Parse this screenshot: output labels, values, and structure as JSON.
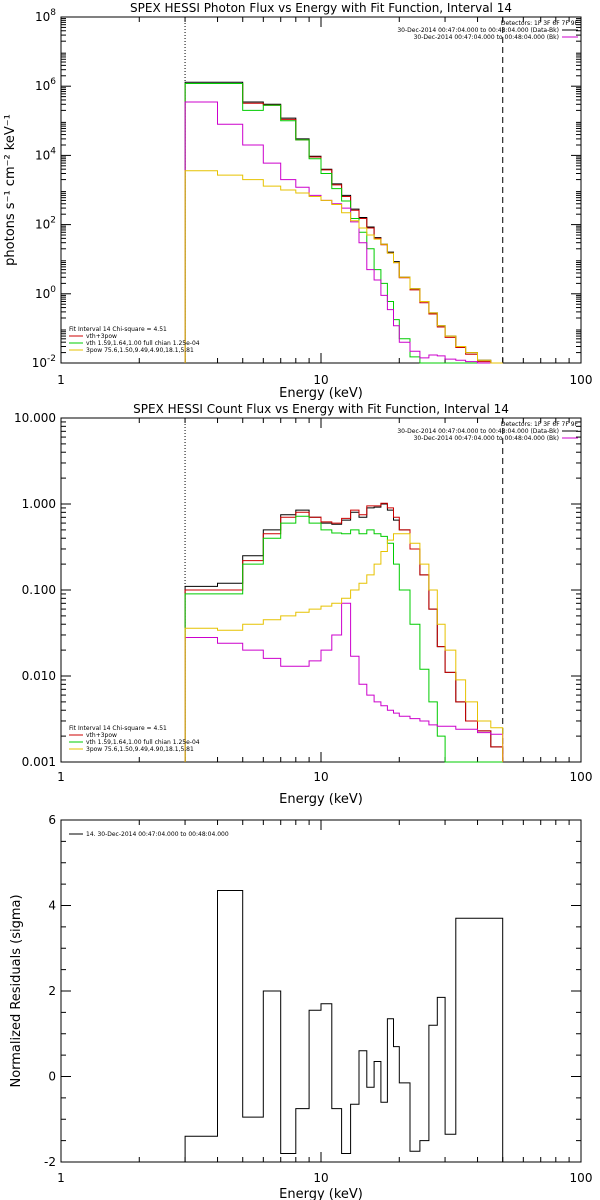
{
  "chart_data": [
    {
      "type": "line",
      "title": "SPEX HESSI Photon Flux vs Energy with Fit Function, Interval 14",
      "xlabel": "Energy (keV)",
      "ylabel": "photons s⁻¹ cm⁻² keV⁻¹",
      "xscale": "log",
      "yscale": "log",
      "xlim": [
        1,
        100
      ],
      "ylim": [
        0.01,
        100000000
      ],
      "x_ticks": [
        {
          "v": 1,
          "label": "1"
        },
        {
          "v": 10,
          "label": "10"
        },
        {
          "v": 100,
          "label": "100"
        }
      ],
      "y_ticks": [
        {
          "v": 0.01,
          "base": "10",
          "exp": "-2"
        },
        {
          "v": 1,
          "base": "10",
          "exp": "0"
        },
        {
          "v": 100,
          "base": "10",
          "exp": "2"
        },
        {
          "v": 10000,
          "base": "10",
          "exp": "4"
        },
        {
          "v": 1000000,
          "base": "10",
          "exp": "6"
        },
        {
          "v": 100000000,
          "base": "10",
          "exp": "8"
        }
      ],
      "vlines": [
        {
          "x": 3.0,
          "style": "dotted",
          "color": "#000000"
        },
        {
          "x": 50.0,
          "style": "dashed",
          "color": "#000000"
        }
      ],
      "legend_right": {
        "detectors": "Detectors: 1F 3F 6F 7F 9F",
        "lines": [
          {
            "text": "30-Dec-2014 00:47:04.000 to 00:48:04.000 (Data-Bk)",
            "color": "#000000"
          },
          {
            "text": "30-Dec-2014 00:47:04.000 to 00:48:04.000 (Bk)",
            "color": "#cc00cc"
          }
        ]
      },
      "legend_left": {
        "header": "Fit Interval 14    Chi-square = 4.51",
        "lines": [
          {
            "text": "vth+3pow",
            "color": "#cc0000"
          },
          {
            "text": "vth 1.59,1.64,1.00  full chian 1.25e-04",
            "color": "#00cc00"
          },
          {
            "text": "3pow 75.6,1.50,9.49,4.90,18.1,5.81",
            "color": "#e6c200"
          }
        ]
      },
      "series": [
        {
          "color": "#000000",
          "edges": [
            3,
            4,
            5,
            6,
            7,
            8,
            9,
            10,
            11,
            12,
            13,
            14,
            15,
            16,
            17,
            18,
            19,
            20,
            22,
            24,
            26,
            28,
            30,
            33,
            36,
            40,
            45,
            50
          ],
          "values": [
            1300000,
            1300000,
            350000,
            300000,
            120000,
            30000,
            9500,
            4000,
            1500,
            700,
            280,
            160,
            85,
            42,
            27,
            16,
            8.5,
            3,
            1.4,
            0.6,
            0.28,
            0.12,
            0.06,
            0.03,
            0.02,
            0.012,
            0.01
          ]
        },
        {
          "color": "#cc0000",
          "edges": [
            3,
            4,
            5,
            6,
            7,
            8,
            9,
            10,
            11,
            12,
            13,
            14,
            15,
            16,
            17,
            18,
            19,
            20,
            22,
            24,
            26,
            28,
            30,
            33,
            36,
            40,
            45,
            50
          ],
          "values": [
            1200000,
            1200000,
            320000,
            280000,
            110000,
            28000,
            9000,
            3800,
            1400,
            650,
            260,
            150,
            80,
            40,
            26,
            15,
            8,
            2.9,
            1.3,
            0.55,
            0.26,
            0.11,
            0.055,
            0.028,
            0.018,
            0.011,
            0.01
          ]
        },
        {
          "color": "#00cc00",
          "edges": [
            3,
            4,
            5,
            6,
            7,
            8,
            9,
            10,
            11,
            12,
            13,
            14,
            15,
            16,
            17,
            18,
            19,
            20,
            22,
            24,
            26,
            28,
            30,
            33,
            36,
            40,
            45,
            50
          ],
          "values": [
            1200000,
            1200000,
            200000,
            280000,
            100000,
            28000,
            8000,
            3000,
            1100,
            480,
            150,
            60,
            20,
            5,
            2,
            0.6,
            0.18,
            0.05,
            0.015,
            0.01,
            0.01,
            0.01,
            0.01,
            0.01,
            0.01,
            0.01,
            0.01
          ]
        },
        {
          "color": "#cc00cc",
          "edges": [
            3,
            4,
            5,
            6,
            7,
            8,
            9,
            10,
            11,
            12,
            13,
            14,
            15,
            16,
            17,
            18,
            19,
            20,
            22,
            24,
            26,
            28,
            30,
            33,
            36,
            40,
            45,
            50
          ],
          "values": [
            350000,
            80000,
            20000,
            6000,
            2000,
            1200,
            700,
            500,
            400,
            300,
            120,
            30,
            5,
            2.5,
            0.9,
            0.35,
            0.12,
            0.04,
            0.022,
            0.014,
            0.017,
            0.016,
            0.013,
            0.012,
            0.011,
            0.01,
            0.01
          ]
        },
        {
          "color": "#e6c200",
          "edges": [
            3,
            4,
            5,
            6,
            7,
            8,
            9,
            10,
            11,
            12,
            13,
            14,
            15,
            16,
            17,
            18,
            19,
            20,
            22,
            24,
            26,
            28,
            30,
            33,
            36,
            40,
            45,
            50
          ],
          "values": [
            3600,
            2700,
            2000,
            1300,
            1000,
            820,
            650,
            500,
            380,
            220,
            130,
            80,
            50,
            38,
            27,
            15,
            8,
            3,
            1.4,
            0.6,
            0.28,
            0.12,
            0.06,
            0.03,
            0.02,
            0.012,
            0.01
          ]
        }
      ]
    },
    {
      "type": "line",
      "title": "SPEX HESSI Count Flux vs Energy with Fit Function, Interval 14",
      "xlabel": "Energy (keV)",
      "ylabel": "",
      "xscale": "log",
      "yscale": "log",
      "xlim": [
        1,
        100
      ],
      "ylim": [
        0.001,
        10
      ],
      "x_ticks": [
        {
          "v": 1,
          "label": "1"
        },
        {
          "v": 10,
          "label": "10"
        },
        {
          "v": 100,
          "label": "100"
        }
      ],
      "y_ticks": [
        {
          "v": 0.001,
          "label": "0.001"
        },
        {
          "v": 0.01,
          "label": "0.010"
        },
        {
          "v": 0.1,
          "label": "0.100"
        },
        {
          "v": 1,
          "label": "1.000"
        },
        {
          "v": 10,
          "label": "10.000"
        }
      ],
      "vlines": [
        {
          "x": 3.0,
          "style": "dotted",
          "color": "#000000"
        },
        {
          "x": 50.0,
          "style": "dashed",
          "color": "#000000"
        }
      ],
      "legend_right": {
        "detectors": "Detectors: 1F 3F 6F 7F 9F",
        "lines": [
          {
            "text": "30-Dec-2014 00:47:04.000 to 00:48:04.000 (Data-Bk)",
            "color": "#000000"
          },
          {
            "text": "30-Dec-2014 00:47:04.000 to 00:48:04.000 (Bk)",
            "color": "#cc00cc"
          }
        ]
      },
      "legend_left": {
        "header": "Fit Interval 14    Chi-square = 4.51",
        "lines": [
          {
            "text": "vth+3pow",
            "color": "#cc0000"
          },
          {
            "text": "vth 1.59,1.64,1.00  full chian 1.25e-04",
            "color": "#00cc00"
          },
          {
            "text": "3pow 75.6,1.50,9.49,4.90,18.1,5.81",
            "color": "#e6c200"
          }
        ]
      },
      "series": [
        {
          "color": "#000000",
          "edges": [
            3,
            4,
            5,
            6,
            7,
            8,
            9,
            10,
            11,
            12,
            13,
            14,
            15,
            16,
            17,
            18,
            19,
            20,
            22,
            24,
            26,
            28,
            30,
            33,
            36,
            40,
            45,
            50
          ],
          "values": [
            0.11,
            0.12,
            0.25,
            0.5,
            0.75,
            0.85,
            0.7,
            0.6,
            0.58,
            0.65,
            0.8,
            0.7,
            0.9,
            0.92,
            1.0,
            0.85,
            0.65,
            0.5,
            0.3,
            0.15,
            0.06,
            0.022,
            0.011,
            0.005,
            0.003,
            0.0023,
            0.0015
          ]
        },
        {
          "color": "#cc0000",
          "edges": [
            3,
            4,
            5,
            6,
            7,
            8,
            9,
            10,
            11,
            12,
            13,
            14,
            15,
            16,
            17,
            18,
            19,
            20,
            22,
            24,
            26,
            28,
            30,
            33,
            36,
            40,
            45,
            50
          ],
          "values": [
            0.1,
            0.1,
            0.22,
            0.45,
            0.7,
            0.8,
            0.7,
            0.62,
            0.6,
            0.68,
            0.85,
            0.75,
            0.95,
            0.95,
            1.02,
            0.9,
            0.7,
            0.5,
            0.3,
            0.15,
            0.06,
            0.022,
            0.011,
            0.005,
            0.003,
            0.0023,
            0.0015
          ]
        },
        {
          "color": "#00cc00",
          "edges": [
            3,
            4,
            5,
            6,
            7,
            8,
            9,
            10,
            11,
            12,
            13,
            14,
            15,
            16,
            17,
            18,
            19,
            20,
            22,
            24,
            26,
            28,
            30,
            33,
            36,
            40,
            45,
            50
          ],
          "values": [
            0.09,
            0.09,
            0.2,
            0.4,
            0.6,
            0.72,
            0.6,
            0.5,
            0.46,
            0.45,
            0.5,
            0.45,
            0.5,
            0.45,
            0.42,
            0.35,
            0.2,
            0.1,
            0.04,
            0.012,
            0.005,
            0.002,
            0.001,
            0.001,
            0.001,
            0.001,
            0.001
          ]
        },
        {
          "color": "#cc00cc",
          "edges": [
            3,
            4,
            5,
            6,
            7,
            8,
            9,
            10,
            11,
            12,
            13,
            14,
            15,
            16,
            17,
            18,
            19,
            20,
            22,
            24,
            26,
            28,
            30,
            33,
            36,
            40,
            45,
            50
          ],
          "values": [
            0.028,
            0.024,
            0.02,
            0.016,
            0.013,
            0.013,
            0.015,
            0.02,
            0.03,
            0.07,
            0.017,
            0.008,
            0.006,
            0.005,
            0.0045,
            0.004,
            0.0037,
            0.0034,
            0.0032,
            0.003,
            0.0027,
            0.0026,
            0.0026,
            0.0024,
            0.0024,
            0.0022,
            0.0021
          ]
        },
        {
          "color": "#e6c200",
          "edges": [
            3,
            4,
            5,
            6,
            7,
            8,
            9,
            10,
            11,
            12,
            13,
            14,
            15,
            16,
            17,
            18,
            19,
            20,
            22,
            24,
            26,
            28,
            30,
            33,
            36,
            40,
            45,
            50
          ],
          "values": [
            0.036,
            0.034,
            0.04,
            0.045,
            0.05,
            0.055,
            0.06,
            0.065,
            0.07,
            0.08,
            0.1,
            0.12,
            0.15,
            0.2,
            0.28,
            0.38,
            0.45,
            0.45,
            0.35,
            0.2,
            0.1,
            0.04,
            0.02,
            0.009,
            0.005,
            0.003,
            0.0025
          ]
        }
      ]
    },
    {
      "type": "line",
      "title": "",
      "xlabel": "Energy (keV)",
      "ylabel": "Normalized Residuals (sigma)",
      "xscale": "log",
      "yscale": "linear",
      "xlim": [
        1,
        100
      ],
      "ylim": [
        -2,
        6
      ],
      "x_ticks": [
        {
          "v": 1,
          "label": "1"
        },
        {
          "v": 10,
          "label": "10"
        },
        {
          "v": 100,
          "label": "100"
        }
      ],
      "y_ticks": [
        {
          "v": -2,
          "label": "-2"
        },
        {
          "v": 0,
          "label": "0"
        },
        {
          "v": 2,
          "label": "2"
        },
        {
          "v": 4,
          "label": "4"
        },
        {
          "v": 6,
          "label": "6"
        }
      ],
      "legend_left": {
        "header": "",
        "lines": [
          {
            "text": "14. 30-Dec-2014 00:47:04.000 to 00:48:04.000",
            "color": "#000000"
          }
        ]
      },
      "series": [
        {
          "color": "#000000",
          "edges": [
            3,
            4,
            5,
            6,
            7,
            8,
            9,
            10,
            11,
            12,
            13,
            14,
            15,
            16,
            17,
            18,
            19,
            20,
            22,
            24,
            26,
            28,
            30,
            33,
            36,
            40,
            45,
            50
          ],
          "values": [
            -1.4,
            4.35,
            -0.95,
            2.0,
            -1.8,
            -0.75,
            1.55,
            1.7,
            -0.75,
            -1.8,
            -0.65,
            0.6,
            -0.25,
            0.35,
            -0.6,
            1.35,
            0.7,
            -0.15,
            -1.75,
            -1.5,
            1.2,
            1.85,
            -1.35,
            3.7,
            3.7,
            3.7,
            3.7
          ]
        }
      ]
    }
  ]
}
